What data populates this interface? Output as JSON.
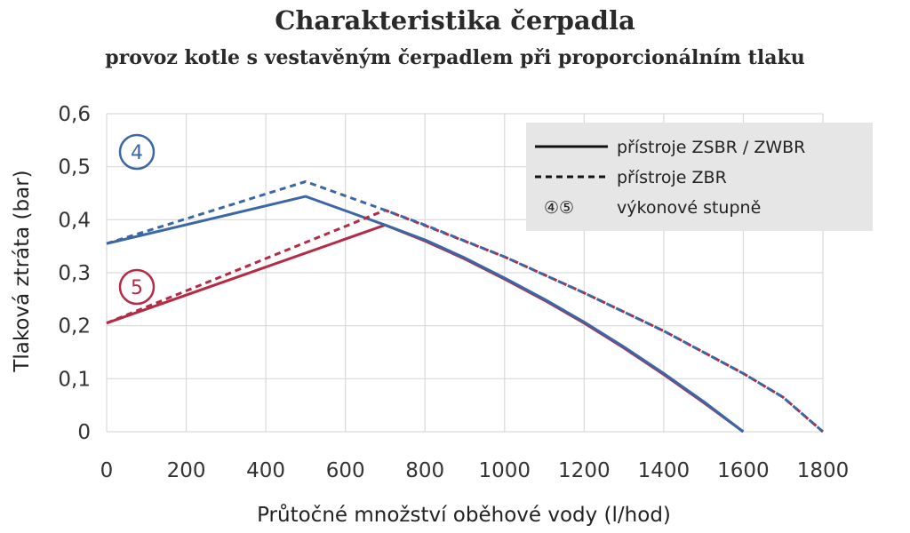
{
  "header": {
    "title": "Charakteristika čerpadla",
    "subtitle": "provoz kotle s vestavěným čerpadlem při proporcionálním tlaku"
  },
  "colors": {
    "blue": "#3b67a6",
    "red": "#b52b45",
    "grid": "#d9d9d9",
    "legend_bg": "#e6e6e6"
  },
  "chart_data": {
    "type": "line",
    "xlabel": "Průtočné množství oběhové vody (l/hod)",
    "ylabel": "Tlaková ztráta  (bar)",
    "xlim": [
      0,
      1800
    ],
    "ylim": [
      0,
      0.6
    ],
    "x_ticks": [
      0,
      200,
      400,
      600,
      800,
      1000,
      1200,
      1400,
      1600,
      1800
    ],
    "x_tick_labels": [
      "0",
      "200",
      "400",
      "600",
      "800",
      "1000",
      "1200",
      "1400",
      "1600",
      "1800"
    ],
    "y_ticks": [
      0,
      0.1,
      0.2,
      0.3,
      0.4,
      0.5,
      0.6
    ],
    "y_tick_labels": [
      "0",
      "0,1",
      "0,2",
      "0,3",
      "0,4",
      "0,5",
      "0,6"
    ],
    "grid": true,
    "legend_position": "top-right",
    "legend": [
      {
        "style": "solid",
        "label": "přístroje ZSBR / ZWBR"
      },
      {
        "style": "dashed",
        "label": "přístroje ZBR"
      },
      {
        "style": "markers",
        "symbols": "④⑤",
        "label": "výkonové stupně"
      }
    ],
    "stage_markers": [
      {
        "label": "4",
        "color": "blue"
      },
      {
        "label": "5",
        "color": "red"
      }
    ],
    "series": [
      {
        "stage": "4",
        "style": "solid",
        "color": "blue",
        "points": [
          [
            0,
            0.355
          ],
          [
            500,
            0.444
          ],
          [
            700,
            0.39
          ],
          [
            800,
            0.362
          ],
          [
            900,
            0.328
          ],
          [
            1000,
            0.29
          ],
          [
            1100,
            0.25
          ],
          [
            1200,
            0.207
          ],
          [
            1300,
            0.16
          ],
          [
            1400,
            0.11
          ],
          [
            1500,
            0.057
          ],
          [
            1600,
            0.0
          ]
        ]
      },
      {
        "stage": "4",
        "style": "dashed",
        "color": "blue",
        "points": [
          [
            0,
            0.355
          ],
          [
            500,
            0.472
          ],
          [
            700,
            0.418
          ],
          [
            800,
            0.39
          ],
          [
            1000,
            0.33
          ],
          [
            1200,
            0.262
          ],
          [
            1400,
            0.19
          ],
          [
            1600,
            0.11
          ],
          [
            1700,
            0.065
          ],
          [
            1800,
            0.0
          ]
        ]
      },
      {
        "stage": "5",
        "style": "solid",
        "color": "red",
        "points": [
          [
            0,
            0.205
          ],
          [
            700,
            0.39
          ],
          [
            800,
            0.36
          ],
          [
            900,
            0.326
          ],
          [
            1000,
            0.288
          ],
          [
            1100,
            0.248
          ],
          [
            1200,
            0.205
          ],
          [
            1300,
            0.158
          ],
          [
            1400,
            0.108
          ],
          [
            1500,
            0.055
          ],
          [
            1600,
            0.0
          ]
        ]
      },
      {
        "stage": "5",
        "style": "dashed",
        "color": "red",
        "points": [
          [
            0,
            0.205
          ],
          [
            700,
            0.418
          ],
          [
            800,
            0.389
          ],
          [
            1000,
            0.33
          ],
          [
            1200,
            0.262
          ],
          [
            1400,
            0.19
          ],
          [
            1600,
            0.11
          ],
          [
            1700,
            0.065
          ],
          [
            1800,
            0.0
          ]
        ]
      }
    ]
  }
}
